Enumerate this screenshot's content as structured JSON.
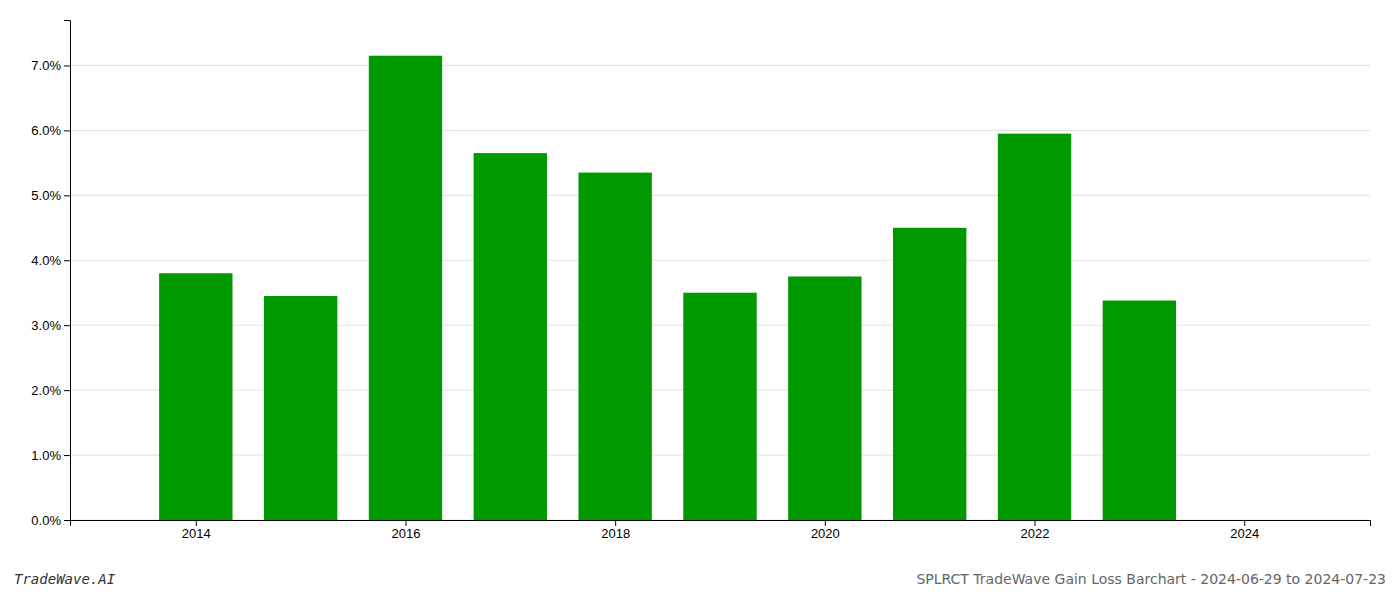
{
  "chart_data": {
    "type": "bar",
    "title": "SPLRCT TradeWave Gain Loss Barchart - 2024-06-29 to 2024-07-23",
    "annotations": [
      "TradeWave.AI"
    ],
    "x": [
      2014,
      2015,
      2016,
      2017,
      2018,
      2019,
      2020,
      2021,
      2022,
      2023
    ],
    "values": [
      0.038,
      0.0345,
      0.0715,
      0.0565,
      0.0535,
      0.035,
      0.0375,
      0.045,
      0.0595,
      0.0338
    ],
    "color": "#009900",
    "xlim": [
      2012.8,
      2025.2
    ],
    "xticks": [
      2014,
      2016,
      2018,
      2020,
      2022,
      2024
    ],
    "ylim": [
      0,
      0.077
    ],
    "yticks": [
      {
        "value": 0.0,
        "label": "0.0%"
      },
      {
        "value": 0.01,
        "label": "1.0%"
      },
      {
        "value": 0.02,
        "label": "2.0%"
      },
      {
        "value": 0.03,
        "label": "3.0%"
      },
      {
        "value": 0.04,
        "label": "4.0%"
      },
      {
        "value": 0.05,
        "label": "5.0%"
      },
      {
        "value": 0.06,
        "label": "6.0%"
      },
      {
        "value": 0.07,
        "label": "7.0%"
      }
    ],
    "grid": true
  }
}
